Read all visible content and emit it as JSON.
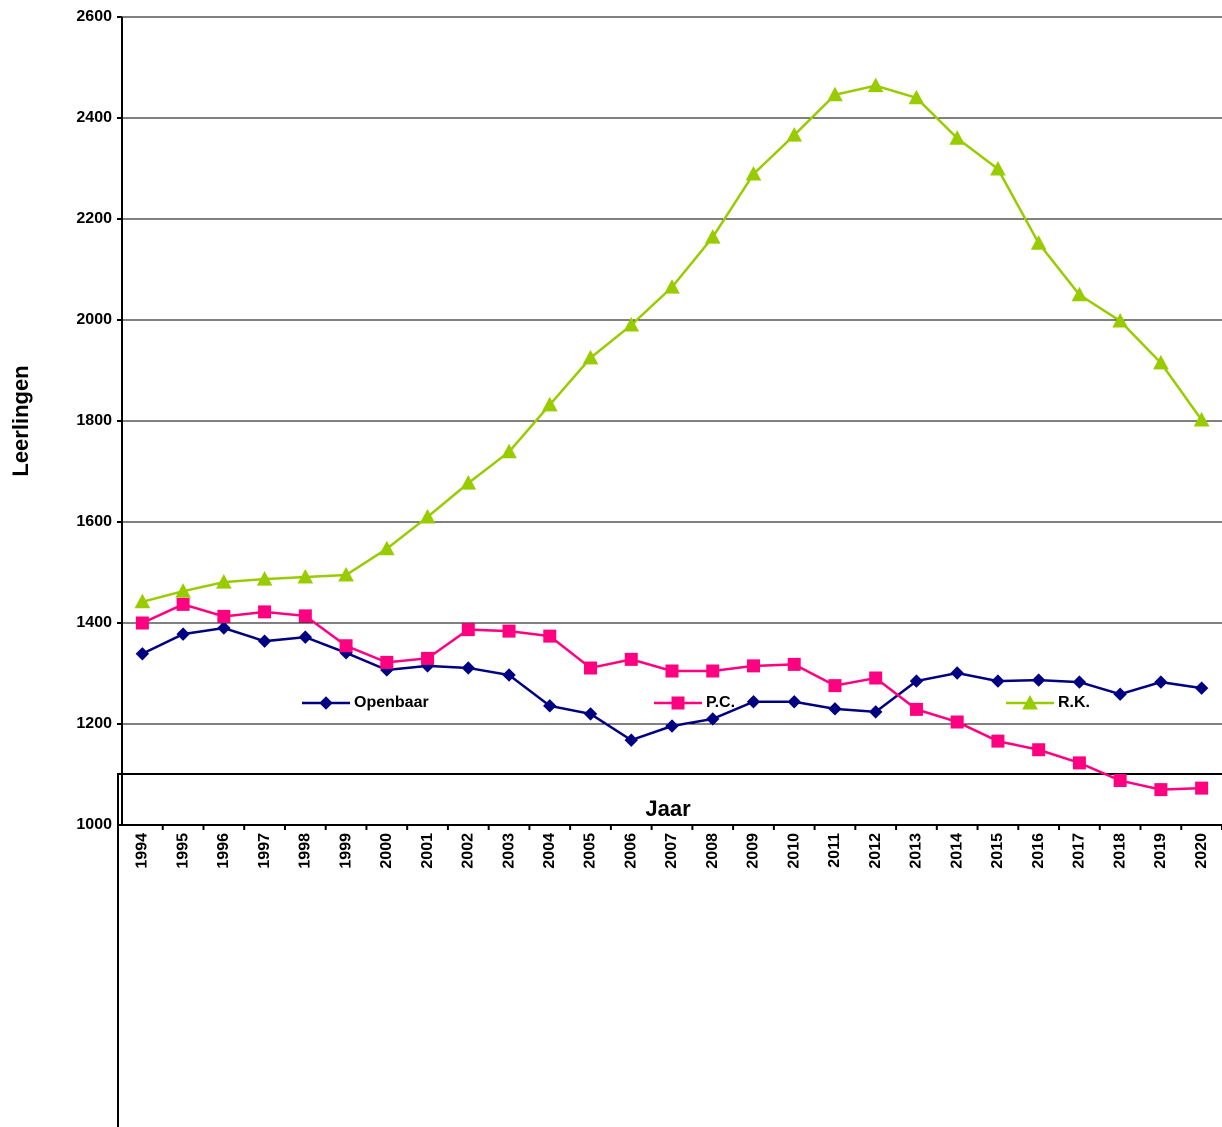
{
  "chart_data": {
    "type": "line",
    "x_label": "Jaar",
    "y_label": "Leerlingen",
    "categories": [
      "1994",
      "1995",
      "1996",
      "1997",
      "1998",
      "1999",
      "2000",
      "2001",
      "2002",
      "2003",
      "2004",
      "2005",
      "2006",
      "2007",
      "2008",
      "2009",
      "2010",
      "2011",
      "2012",
      "2013",
      "2014",
      "2015",
      "2016",
      "2017",
      "2018",
      "2019",
      "2020"
    ],
    "series": [
      {
        "name": "Openbaar",
        "color": "#000080",
        "marker": "diamond",
        "values": [
          1339,
          1378,
          1390,
          1364,
          1372,
          1341,
          1307,
          1315,
          1311,
          1297,
          1236,
          1220,
          1168,
          1196,
          1210,
          1244,
          1244,
          1230,
          1224,
          1285,
          1301,
          1285,
          1287,
          1283,
          1259,
          1283,
          1271
        ]
      },
      {
        "name": "P.C.",
        "color": "#ff0080",
        "marker": "square",
        "values": [
          1400,
          1437,
          1413,
          1422,
          1414,
          1355,
          1322,
          1330,
          1387,
          1384,
          1374,
          1311,
          1328,
          1305,
          1305,
          1315,
          1318,
          1276,
          1291,
          1229,
          1204,
          1166,
          1149,
          1123,
          1088,
          1070,
          1073
        ]
      },
      {
        "name": "R.K.",
        "color": "#99cc00",
        "marker": "triangle",
        "values": [
          1442,
          1463,
          1481,
          1487,
          1491,
          1495,
          1547,
          1610,
          1677,
          1739,
          1832,
          1925,
          1990,
          2065,
          2164,
          2289,
          2366,
          2446,
          2464,
          2440,
          2360,
          2299,
          2152,
          2050,
          1998,
          1915,
          1802
        ]
      }
    ],
    "ylim": [
      1000,
      2600
    ],
    "yticks": [
      1000,
      1200,
      1400,
      1600,
      1800,
      2000,
      2200,
      2400,
      2600
    ],
    "grid": true
  }
}
